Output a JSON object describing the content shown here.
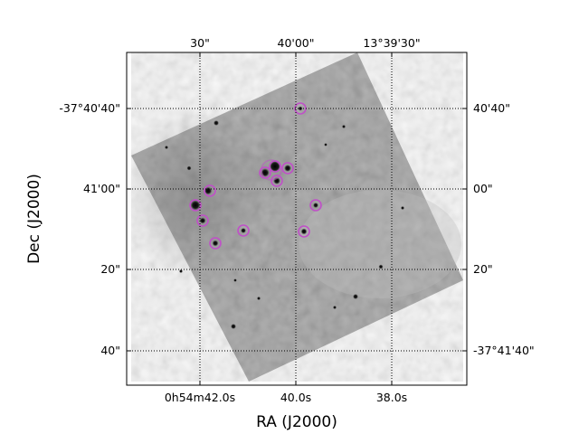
{
  "axes": {
    "xlabel": "RA (J2000)",
    "ylabel": "Dec (J2000)",
    "bottom_ticks": [
      "0h54m42.0s",
      "40.0s",
      "38.0s"
    ],
    "top_ticks": [
      "30\"",
      "40'00\"",
      "13°39'30\""
    ],
    "left_ticks": [
      "-37°40'40\"",
      "41'00\"",
      "20\"",
      "40\""
    ],
    "right_ticks": [
      "40'40\"",
      "00\"",
      "20\"",
      "-37°41'40\""
    ],
    "grid": "dotted"
  },
  "image": {
    "colormap": "grayscale",
    "marker_color": "#c050c8",
    "marked_sources_count": 13
  }
}
